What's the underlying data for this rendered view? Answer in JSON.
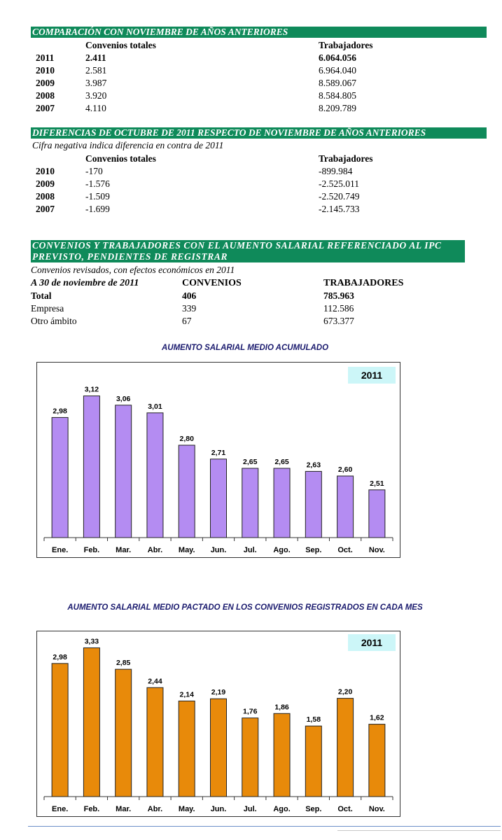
{
  "sections": {
    "comparacion": {
      "title": "COMPARACIÓN CON NOVIEMBRE DE AÑOS ANTERIORES",
      "col_convenios": "Convenios totales",
      "col_trabajadores": "Trabajadores",
      "rows": [
        {
          "year": "2011",
          "convenios": "2.411",
          "trabajadores": "6.064.056"
        },
        {
          "year": "2010",
          "convenios": "2.581",
          "trabajadores": "6.964.040"
        },
        {
          "year": "2009",
          "convenios": "3.987",
          "trabajadores": "8.589.067"
        },
        {
          "year": "2008",
          "convenios": "3.920",
          "trabajadores": "8.584.805"
        },
        {
          "year": "2007",
          "convenios": "4.110",
          "trabajadores": "8.209.789"
        }
      ]
    },
    "diferencias": {
      "title": "DIFERENCIAS DE OCTUBRE DE 2011 RESPECTO DE NOVIEMBRE DE AÑOS ANTERIORES",
      "note": "Cifra negativa indica diferencia en contra de 2011",
      "col_convenios": "Convenios totales",
      "col_trabajadores": "Trabajadores",
      "rows": [
        {
          "year": "2010",
          "convenios": "-170",
          "trabajadores": "-899.984"
        },
        {
          "year": "2009",
          "convenios": "-1.576",
          "trabajadores": "-2.525.011"
        },
        {
          "year": "2008",
          "convenios": "-1.509",
          "trabajadores": "-2.520.749"
        },
        {
          "year": "2007",
          "convenios": "-1.699",
          "trabajadores": "-2.145.733"
        }
      ]
    },
    "pendientes": {
      "title": "CONVENIOS Y TRABAJADORES CON EL AUMENTO SALARIAL REFERENCIADO AL IPC PREVISTO, PENDIENTES DE REGISTRAR",
      "note": "Convenios revisados, con efectos económicos en 2011",
      "date_label": "A 30 de noviembre de 2011",
      "col_convenios": "CONVENIOS",
      "col_trabajadores": "TRABAJADORES",
      "rows": [
        {
          "label": "Total",
          "convenios": "406",
          "trabajadores": "785.963"
        },
        {
          "label": "Empresa",
          "convenios": "339",
          "trabajadores": "112.586"
        },
        {
          "label": "Otro ámbito",
          "convenios": "67",
          "trabajadores": "673.377"
        }
      ]
    }
  },
  "colors": {
    "band": "#0f8a5a",
    "bar_purple": "#b48cf2",
    "bar_orange": "#e88a0a",
    "year_tag_bg": "#ccf6f8"
  },
  "chart_data": [
    {
      "type": "bar",
      "title": "AUMENTO SALARIAL MEDIO ACUMULADO",
      "legend_tag": "2011",
      "categories": [
        "Ene.",
        "Feb.",
        "Mar.",
        "Abr.",
        "May.",
        "Jun.",
        "Jul.",
        "Ago.",
        "Sep.",
        "Oct.",
        "Nov."
      ],
      "values": [
        2.98,
        3.12,
        3.06,
        3.01,
        2.8,
        2.71,
        2.65,
        2.65,
        2.63,
        2.6,
        2.51
      ],
      "labels": [
        "2,98",
        "3,12",
        "3,06",
        "3,01",
        "2,80",
        "2,71",
        "2,65",
        "2,65",
        "2,63",
        "2,60",
        "2,51"
      ],
      "ylim": [
        2.2,
        3.2
      ],
      "grid": false
    },
    {
      "type": "bar",
      "title": "AUMENTO SALARIAL MEDIO PACTADO EN LOS CONVENIOS REGISTRADOS EN CADA MES",
      "legend_tag": "2011",
      "categories": [
        "Ene.",
        "Feb.",
        "Mar.",
        "Abr.",
        "May.",
        "Jun.",
        "Jul.",
        "Ago.",
        "Sep.",
        "Oct.",
        "Nov."
      ],
      "values": [
        2.98,
        3.33,
        2.85,
        2.44,
        2.14,
        2.19,
        1.76,
        1.86,
        1.58,
        2.2,
        1.62
      ],
      "labels": [
        "2,98",
        "3,33",
        "2,85",
        "2,44",
        "2,14",
        "2,19",
        "1,76",
        "1,86",
        "1,58",
        "2,20",
        "1,62"
      ],
      "ylim": [
        0,
        3.4
      ],
      "grid": false
    }
  ]
}
